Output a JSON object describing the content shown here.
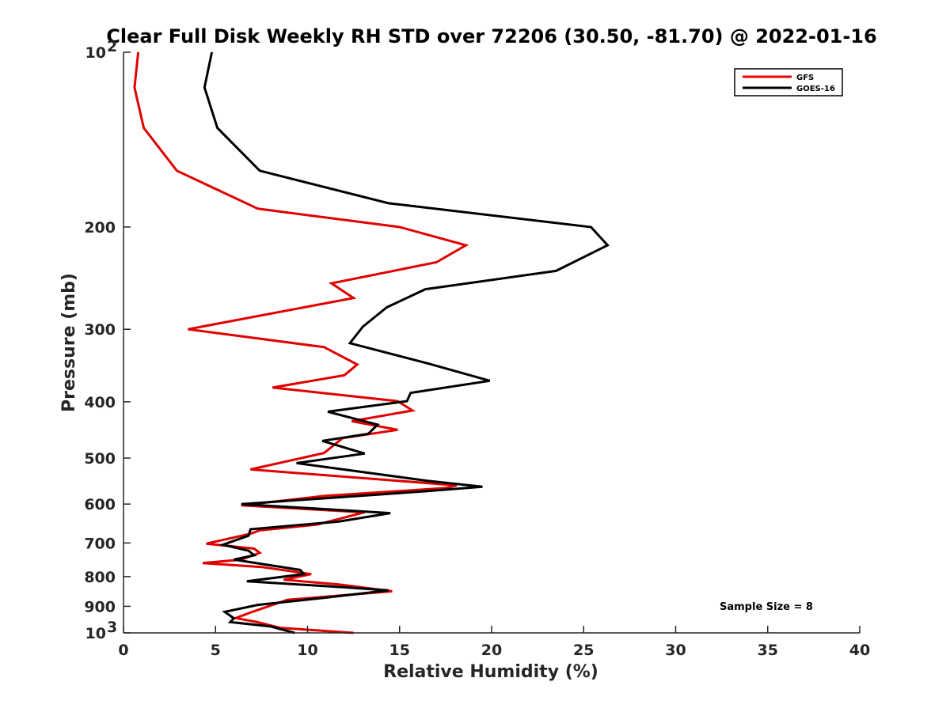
{
  "chart_data": {
    "type": "line",
    "title": "Clear Full Disk Weekly RH STD over 72206 (30.50, -81.70) @ 2022-01-16",
    "xlabel": "Relative Humidity (%)",
    "ylabel": "Pressure (mb)",
    "xlim": [
      0,
      40
    ],
    "ylim": [
      100,
      1000
    ],
    "y_scale": "log",
    "y_reversed": true,
    "x_ticks": [
      "0",
      "5",
      "10",
      "15",
      "20",
      "25",
      "30",
      "35",
      "40"
    ],
    "y_ticks": [
      {
        "value": 100,
        "base": "10",
        "exp": "2"
      },
      {
        "value": 200,
        "label": "200"
      },
      {
        "value": 300,
        "label": "300"
      },
      {
        "value": 400,
        "label": "400"
      },
      {
        "value": 500,
        "label": "500"
      },
      {
        "value": 600,
        "label": "600"
      },
      {
        "value": 700,
        "label": "700"
      },
      {
        "value": 800,
        "label": "800"
      },
      {
        "value": 900,
        "label": "900"
      },
      {
        "value": 1000,
        "base": "10",
        "exp": "3"
      }
    ],
    "grid": false,
    "legend_position": "top-right",
    "annotation": "Sample Size = 8",
    "series": [
      {
        "name": "GFS",
        "color": "#e00000",
        "points": [
          [
            0.8,
            100
          ],
          [
            0.6,
            115
          ],
          [
            1.1,
            135
          ],
          [
            2.9,
            160
          ],
          [
            7.3,
            186
          ],
          [
            15.0,
            200
          ],
          [
            18.6,
            215
          ],
          [
            17.0,
            230
          ],
          [
            11.3,
            250
          ],
          [
            12.5,
            265
          ],
          [
            3.5,
            300
          ],
          [
            10.9,
            322
          ],
          [
            12.7,
            345
          ],
          [
            12.0,
            360
          ],
          [
            8.1,
            378
          ],
          [
            14.9,
            399
          ],
          [
            15.7,
            414
          ],
          [
            12.4,
            432
          ],
          [
            14.9,
            447
          ],
          [
            11.9,
            462
          ],
          [
            10.9,
            490
          ],
          [
            6.9,
            523
          ],
          [
            18.1,
            557
          ],
          [
            17.5,
            563
          ],
          [
            10.9,
            581
          ],
          [
            6.4,
            603
          ],
          [
            13.1,
            620
          ],
          [
            10.5,
            651
          ],
          [
            7.4,
            666
          ],
          [
            6.9,
            675
          ],
          [
            4.5,
            702
          ],
          [
            7.1,
            716
          ],
          [
            7.4,
            728
          ],
          [
            6.4,
            748
          ],
          [
            4.3,
            758
          ],
          [
            7.5,
            770
          ],
          [
            10.2,
            792
          ],
          [
            8.7,
            810
          ],
          [
            11.7,
            825
          ],
          [
            14.6,
            848
          ],
          [
            8.9,
            877
          ],
          [
            7.0,
            920
          ],
          [
            6.1,
            943
          ],
          [
            7.2,
            957
          ],
          [
            8.5,
            980
          ],
          [
            12.5,
            1000
          ]
        ]
      },
      {
        "name": "GOES-16",
        "color": "#000000",
        "points": [
          [
            4.8,
            100
          ],
          [
            4.4,
            115
          ],
          [
            5.1,
            135
          ],
          [
            7.4,
            160
          ],
          [
            14.4,
            182
          ],
          [
            25.4,
            200
          ],
          [
            26.3,
            215
          ],
          [
            23.5,
            238
          ],
          [
            16.4,
            256
          ],
          [
            14.3,
            275
          ],
          [
            13.0,
            297
          ],
          [
            12.3,
            317
          ],
          [
            16.6,
            344
          ],
          [
            19.9,
            368
          ],
          [
            15.6,
            386
          ],
          [
            15.4,
            399
          ],
          [
            11.1,
            416
          ],
          [
            13.8,
            438
          ],
          [
            13.3,
            454
          ],
          [
            10.8,
            467
          ],
          [
            13.1,
            491
          ],
          [
            9.4,
            510
          ],
          [
            16.5,
            547
          ],
          [
            19.5,
            560
          ],
          [
            16.5,
            570
          ],
          [
            6.4,
            600
          ],
          [
            14.5,
            622
          ],
          [
            11.7,
            643
          ],
          [
            6.9,
            663
          ],
          [
            6.8,
            680
          ],
          [
            5.4,
            705
          ],
          [
            6.8,
            722
          ],
          [
            7.1,
            735
          ],
          [
            6.0,
            748
          ],
          [
            9.6,
            779
          ],
          [
            9.8,
            792
          ],
          [
            6.7,
            815
          ],
          [
            12.1,
            835
          ],
          [
            14.4,
            845
          ],
          [
            11.2,
            868
          ],
          [
            7.3,
            895
          ],
          [
            5.5,
            920
          ],
          [
            6.0,
            944
          ],
          [
            5.8,
            958
          ],
          [
            8.0,
            975
          ],
          [
            9.3,
            1000
          ]
        ]
      }
    ]
  }
}
